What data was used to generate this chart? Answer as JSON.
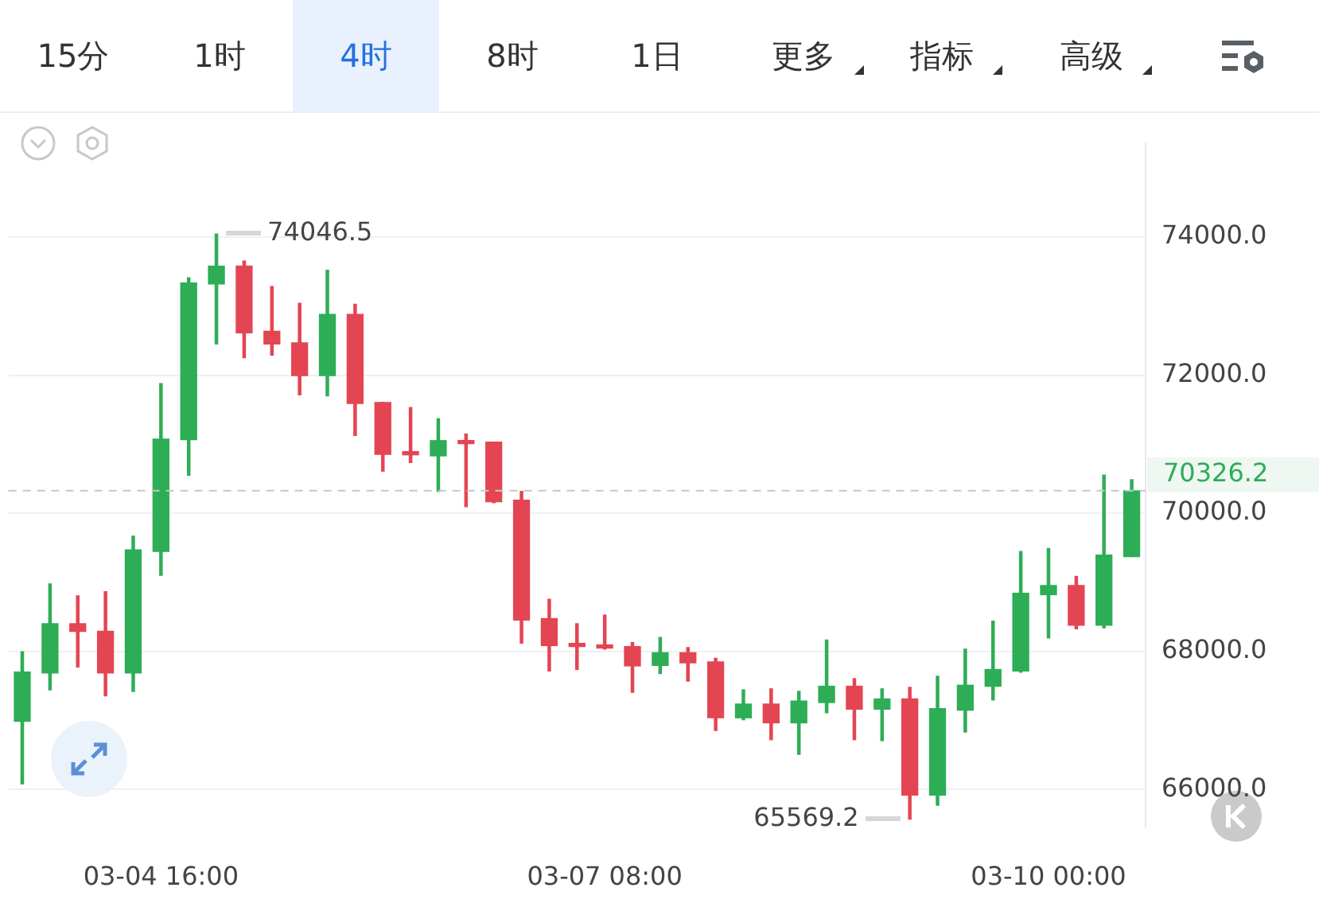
{
  "chart_data": {
    "type": "candlestick",
    "categories": [
      null,
      null,
      null,
      null,
      null,
      "03-04 16:00",
      null,
      null,
      null,
      null,
      null,
      null,
      null,
      null,
      null,
      null,
      null,
      null,
      null,
      null,
      null,
      "03-07 08:00",
      null,
      null,
      null,
      null,
      null,
      null,
      null,
      null,
      null,
      null,
      null,
      null,
      null,
      null,
      null,
      "03-10 00:00",
      null,
      null,
      null
    ],
    "ohlc": [
      [
        66987,
        67996,
        66081,
        67701
      ],
      [
        67687,
        68976,
        67443,
        68401
      ],
      [
        68401,
        68806,
        67775,
        68291
      ],
      [
        68291,
        68865,
        67355,
        67687
      ],
      [
        67687,
        69668,
        67421,
        69469
      ],
      [
        69447,
        71878,
        69101,
        71075
      ],
      [
        71068,
        73411,
        70552,
        73337
      ],
      [
        73322,
        74046.5,
        72453,
        73580
      ],
      [
        73580,
        73654,
        72254,
        72615
      ],
      [
        72637,
        73285,
        72291,
        72453
      ],
      [
        72468,
        73042,
        71716,
        71996
      ],
      [
        71996,
        73521,
        71701,
        72880
      ],
      [
        72880,
        73028,
        71127,
        71591
      ],
      [
        71606,
        71606,
        70611,
        70854
      ],
      [
        70884,
        71532,
        70736,
        70847
      ],
      [
        70832,
        71370,
        70317,
        71053
      ],
      [
        71053,
        71149,
        70096,
        71009
      ],
      [
        71031,
        71031,
        70154,
        70169
      ],
      [
        70191,
        70317,
        68121,
        68453
      ],
      [
        68475,
        68755,
        67716,
        68084
      ],
      [
        68106,
        68401,
        67738,
        68070
      ],
      [
        68084,
        68526,
        68033,
        68048
      ],
      [
        68070,
        68129,
        67407,
        67790
      ],
      [
        67797,
        68202,
        67679,
        67981
      ],
      [
        67981,
        68055,
        67569,
        67834
      ],
      [
        67849,
        67900,
        66854,
        67038
      ],
      [
        67038,
        67443,
        67010,
        67237
      ],
      [
        67237,
        67458,
        66721,
        66965
      ],
      [
        66965,
        67421,
        66508,
        67281
      ],
      [
        67259,
        68165,
        67112,
        67495
      ],
      [
        67495,
        67605,
        66721,
        67163
      ],
      [
        67163,
        67458,
        66707,
        67311
      ],
      [
        67311,
        67480,
        65569.2,
        65918
      ],
      [
        65918,
        67642,
        65771,
        67171
      ],
      [
        67149,
        68033,
        66832,
        67510
      ],
      [
        67495,
        68438,
        67296,
        67738
      ],
      [
        67716,
        69447,
        67700,
        68843
      ],
      [
        68821,
        69491,
        68195,
        68954
      ],
      [
        68954,
        69086,
        68327,
        68379
      ],
      [
        68379,
        70552,
        68342,
        69396
      ],
      [
        69374,
        70486,
        69374,
        70326.2
      ]
    ],
    "colors": [
      "#2ead57",
      "#2ead57",
      "#e44553",
      "#e44553",
      "#2ead57",
      "#2ead57",
      "#2ead57",
      "#2ead57",
      "#e44553",
      "#e44553",
      "#e44553",
      "#2ead57",
      "#e44553",
      "#e44553",
      "#e44553",
      "#2ead57",
      "#e44553",
      "#e44553",
      "#e44553",
      "#e44553",
      "#e44553",
      "#e44553",
      "#e44553",
      "#2ead57",
      "#e44553",
      "#e44553",
      "#2ead57",
      "#e44553",
      "#2ead57",
      "#2ead57",
      "#e44553",
      "#2ead57",
      "#e44553",
      "#2ead57",
      "#2ead57",
      "#2ead57",
      "#2ead57",
      "#2ead57",
      "#e44553",
      "#2ead57",
      "#2ead57"
    ],
    "ylim": [
      65450,
      75370
    ],
    "yticks": [
      {
        "value": 66000,
        "label": "66000.0"
      },
      {
        "value": 68000,
        "label": "68000.0"
      },
      {
        "value": 70000,
        "label": "70000.0"
      },
      {
        "value": 72000,
        "label": "72000.0"
      },
      {
        "value": 74000,
        "label": "74000.0"
      }
    ],
    "grid": "y",
    "ref_lines": [
      {
        "axis": "y",
        "value": 70326.2,
        "label": "70326.2",
        "color": "#c4c7cc",
        "line_style": "dashed"
      }
    ],
    "annotations": [
      "15分",
      "1时",
      "4时",
      "8时",
      "1日",
      "更多",
      "指标",
      "高级",
      "74046.5",
      "65569.2"
    ]
  }
}
